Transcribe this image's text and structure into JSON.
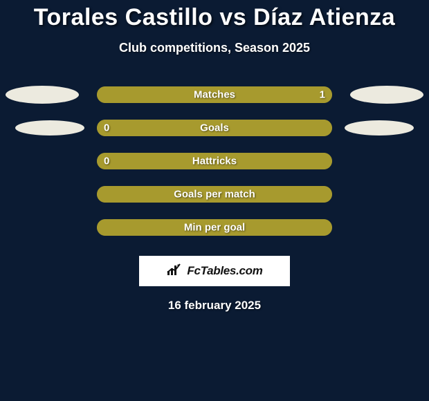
{
  "background_color": "#0b1b33",
  "text_color": "#ffffff",
  "ellipse_color": "#eceadf",
  "bar_fill_color": "#a79a2e",
  "bar_border_color": "#a79a2e",
  "logo_bg": "#ffffff",
  "title": "Torales Castillo vs Díaz Atienza",
  "subtitle": "Club competitions, Season 2025",
  "date": "16 february 2025",
  "logo_label": "FcTables.com",
  "rows": [
    {
      "label": "Matches",
      "left_value": "",
      "right_value": "1",
      "left_fill_pct": 0,
      "right_fill_pct": 100,
      "show_left_ellipse": true,
      "show_right_ellipse": true,
      "ellipse_size": "large"
    },
    {
      "label": "Goals",
      "left_value": "0",
      "right_value": "",
      "left_fill_pct": 100,
      "right_fill_pct": 0,
      "show_left_ellipse": true,
      "show_right_ellipse": true,
      "ellipse_size": "small"
    },
    {
      "label": "Hattricks",
      "left_value": "0",
      "right_value": "",
      "left_fill_pct": 100,
      "right_fill_pct": 0,
      "show_left_ellipse": false,
      "show_right_ellipse": false,
      "ellipse_size": "small"
    },
    {
      "label": "Goals per match",
      "left_value": "",
      "right_value": "",
      "left_fill_pct": 50,
      "right_fill_pct": 50,
      "show_left_ellipse": false,
      "show_right_ellipse": false,
      "ellipse_size": "small"
    },
    {
      "label": "Min per goal",
      "left_value": "",
      "right_value": "",
      "left_fill_pct": 50,
      "right_fill_pct": 50,
      "show_left_ellipse": false,
      "show_right_ellipse": false,
      "ellipse_size": "small"
    }
  ]
}
